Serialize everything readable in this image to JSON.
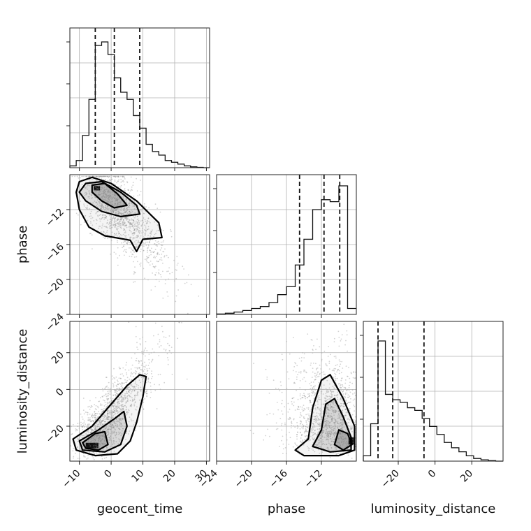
{
  "chart_data": {
    "type": "corner",
    "parameters": [
      "geocent_time",
      "phase",
      "luminosity_distance"
    ],
    "axis_labels": {
      "geocent_time": "geocent_time",
      "phase": "phase",
      "luminosity_distance": "luminosity_distance"
    },
    "ranges": {
      "geocent_time": [
        -13,
        31
      ],
      "phase": [
        -24,
        -8
      ],
      "luminosity_distance": [
        -39,
        37
      ]
    },
    "ticks": {
      "geocent_time": [
        -10,
        0,
        10,
        20,
        30
      ],
      "phase": [
        -24,
        -20,
        -16,
        -12
      ],
      "luminosity_distance": [
        -20,
        0,
        20
      ]
    },
    "tick_labels": {
      "geocent_time": [
        "−10",
        "0",
        "10",
        "20",
        "30"
      ],
      "phase": [
        "−24",
        "−20",
        "−16",
        "−12"
      ],
      "phase_y": [
        "−12",
        "−16",
        "−20",
        "−24"
      ],
      "luminosity_distance": [
        "−20",
        "0",
        "20"
      ]
    },
    "quantiles": {
      "geocent_time": [
        -5,
        1,
        9
      ],
      "phase": [
        -14.5,
        -11.7,
        -9.9
      ],
      "luminosity_distance": [
        -31,
        -23,
        -6
      ]
    },
    "histograms": {
      "geocent_time": {
        "edges": [
          -13,
          -11,
          -9,
          -7,
          -5,
          -3,
          -1,
          1,
          3,
          5,
          7,
          9,
          11,
          13,
          15,
          17,
          19,
          21,
          23,
          25,
          27,
          29,
          31
        ],
        "counts": [
          1,
          4,
          18,
          38,
          68,
          70,
          63,
          50,
          42,
          38,
          29,
          22,
          13,
          9,
          7,
          4,
          3,
          2,
          1,
          0.5,
          0.2,
          0
        ]
      },
      "phase": {
        "edges": [
          -24,
          -23,
          -22,
          -21,
          -20,
          -19,
          -18,
          -17,
          -16,
          -15,
          -14,
          -13,
          -12,
          -11,
          -10,
          -9,
          -8
        ],
        "counts": [
          0.2,
          0.6,
          1.2,
          2,
          3,
          4,
          6,
          10,
          14,
          25,
          38,
          53,
          58,
          57,
          65,
          3
        ]
      },
      "luminosity_distance": {
        "edges": [
          -39,
          -35,
          -31,
          -27,
          -23,
          -19,
          -15,
          -11,
          -7,
          -3,
          1,
          5,
          9,
          13,
          17,
          21,
          25,
          29,
          33,
          37
        ],
        "counts": [
          2,
          14,
          45,
          25,
          23,
          22,
          20,
          19,
          16,
          13,
          10,
          7,
          5,
          3.5,
          2,
          1,
          0.5,
          0.2,
          0
        ]
      }
    },
    "density_peaks": {
      "geocent_time_vs_phase": [
        -4.5,
        -9.5
      ],
      "geocent_time_vs_luminosity_distance": [
        -6,
        -30
      ],
      "phase_vs_luminosity_distance": [
        -9,
        -28
      ]
    },
    "grid": true
  }
}
